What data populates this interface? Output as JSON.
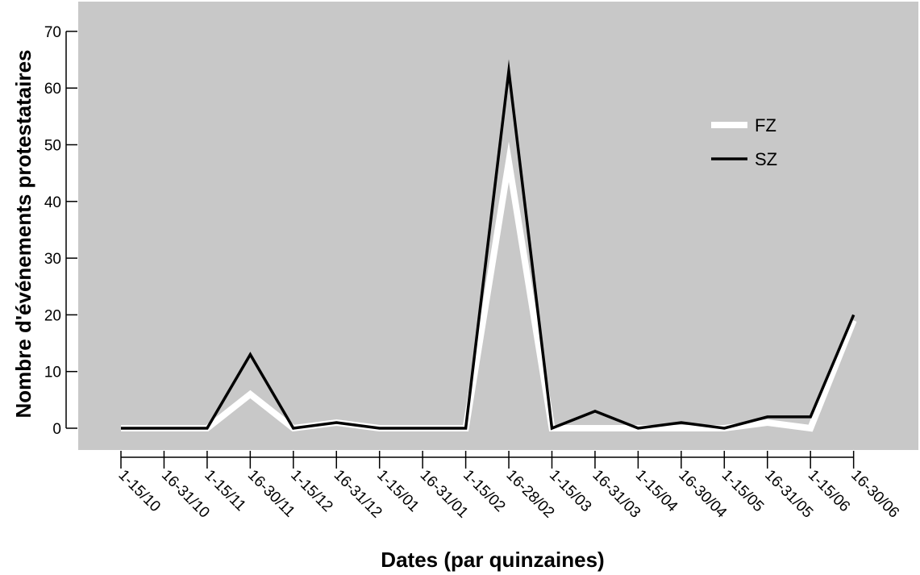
{
  "chart_data": {
    "type": "line",
    "title": "",
    "xlabel": "Dates (par quinzaines)",
    "ylabel": "Nombre d'événements protestataires",
    "ylim": [
      0,
      70
    ],
    "yticks": [
      0,
      10,
      20,
      30,
      40,
      50,
      60,
      70
    ],
    "grid": false,
    "legend_position": "right",
    "plot_background": "#c8c8c8",
    "categories": [
      "1-15/10",
      "16-31/10",
      "1-15/11",
      "16-30/11",
      "1-15/12",
      "16-31/12",
      "1-15/01",
      "16-31/01",
      "1-15/02",
      "16-28/02",
      "1-15/03",
      "16-31/03",
      "1-15/04",
      "16-30/04",
      "1-15/05",
      "16-31/05",
      "1-15/06",
      "16-30/06"
    ],
    "series": [
      {
        "name": "FZ",
        "color": "#ffffff",
        "values": [
          0,
          0,
          0,
          6,
          0,
          1,
          0,
          0,
          0,
          47,
          0,
          0,
          0,
          0,
          0,
          1,
          0,
          19
        ]
      },
      {
        "name": "SZ",
        "color": "#000000",
        "values": [
          0,
          0,
          0,
          13,
          0,
          1,
          0,
          0,
          0,
          63,
          0,
          3,
          0,
          1,
          0,
          2,
          2,
          20
        ]
      }
    ]
  }
}
